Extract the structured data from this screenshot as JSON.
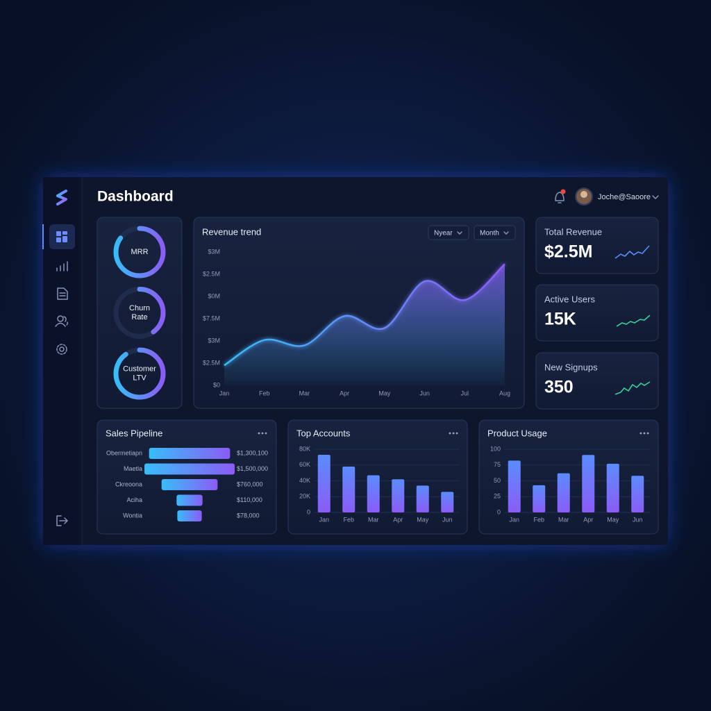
{
  "header": {
    "title": "Dashboard",
    "user": "Joche@Saoore"
  },
  "rings": [
    {
      "label_lines": [
        "MRR"
      ],
      "progress": 85
    },
    {
      "label_lines": [
        "Churn",
        "Rate"
      ],
      "progress": 40
    },
    {
      "label_lines": [
        "Customer",
        "LTV"
      ],
      "progress": 90
    }
  ],
  "revenue_trend": {
    "type": "line",
    "title": "Revenue trend",
    "controls": [
      "Nyear",
      "Month"
    ],
    "y_axis_labels": [
      "$3M",
      "$2.5M",
      "$0M",
      "$7.5M",
      "$3M",
      "$2.5M",
      "$0"
    ],
    "categories": [
      "Jan",
      "Feb",
      "Mar",
      "Apr",
      "May",
      "Jun",
      "Jul",
      "Aug"
    ],
    "values": [
      15,
      34,
      30,
      52,
      43,
      78,
      64,
      91
    ],
    "ylim": [
      0,
      100
    ],
    "colors": [
      "#38bdf8",
      "#8b5cf6"
    ]
  },
  "kpis": [
    {
      "label": "Total Revenue",
      "value": "$2.5M"
    },
    {
      "label": "Active Users",
      "value": "15K"
    },
    {
      "label": "New Signups",
      "value": "350"
    }
  ],
  "sales_pipeline": {
    "type": "funnel",
    "title": "Sales Pipeline",
    "categories": [
      "Obermetiapn",
      "Maetla",
      "Ckreoona",
      "Aciha",
      "Wontia"
    ],
    "values": [
      1300100,
      1500000,
      760000,
      110000,
      78000
    ],
    "value_labels": [
      "$1,300,100",
      "$1,500,000",
      "$760,000",
      "$110,000",
      "$78,000"
    ],
    "colors": [
      "#38bdf8",
      "#8b5cf6"
    ]
  },
  "top_accounts": {
    "type": "bar",
    "title": "Top Accounts",
    "categories": [
      "Jan",
      "Feb",
      "Mar",
      "Apr",
      "May",
      "Jun"
    ],
    "values": [
      73000,
      58000,
      47000,
      42000,
      34000,
      26000
    ],
    "ylim": [
      0,
      80000
    ],
    "yticks": [
      0,
      {
        "value": 20000,
        "label": "20K"
      },
      {
        "value": 40000,
        "label": "40K"
      },
      {
        "value": 60000,
        "label": "60K"
      },
      {
        "value": 80000,
        "label": "80K"
      }
    ],
    "grid": true,
    "colors": [
      "#5b8cff",
      "#8b5cf6"
    ]
  },
  "product_usage": {
    "type": "bar",
    "title": "Product Usage",
    "categories": [
      "Jan",
      "Feb",
      "Mar",
      "Apr",
      "May",
      "Jun"
    ],
    "values": [
      82,
      43,
      62,
      91,
      77,
      58
    ],
    "ylim": [
      0,
      100
    ],
    "yticks": [
      0,
      25,
      50,
      75,
      100
    ],
    "grid": true,
    "colors": [
      "#5b8cff",
      "#8b5cf6"
    ]
  }
}
